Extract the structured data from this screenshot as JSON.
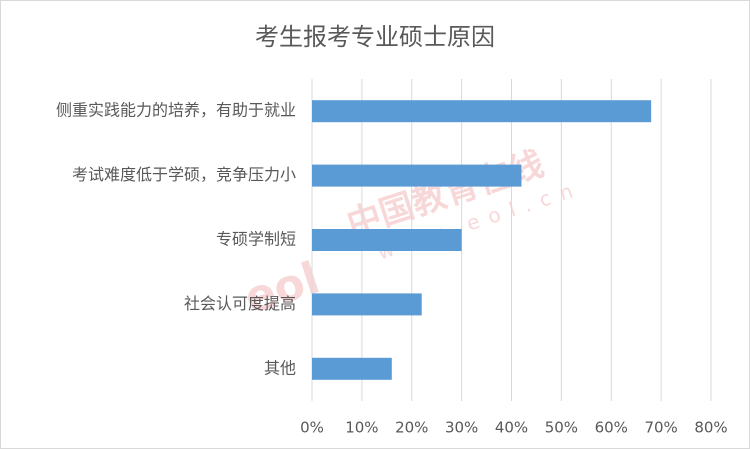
{
  "chart_data": {
    "type": "bar",
    "orientation": "horizontal",
    "title": "考生报考专业硕士原因",
    "categories": [
      "侧重实践能力的培养，有助于就业",
      "考试难度低于学硕，竞争压力小",
      "专硕学制短",
      "社会认可度提高",
      "其他"
    ],
    "values": [
      68,
      42,
      30,
      22,
      16
    ],
    "color": "#5b9bd5",
    "xlim": [
      0,
      80
    ],
    "xticks": [
      {
        "value": 0,
        "label": "0%"
      },
      {
        "value": 10,
        "label": "10%"
      },
      {
        "value": 20,
        "label": "20%"
      },
      {
        "value": 30,
        "label": "30%"
      },
      {
        "value": 40,
        "label": "40%"
      },
      {
        "value": 50,
        "label": "50%"
      },
      {
        "value": 60,
        "label": "60%"
      },
      {
        "value": 70,
        "label": "70%"
      },
      {
        "value": 80,
        "label": "80%"
      }
    ],
    "grid": true
  },
  "watermark": {
    "text": "中国教育在线",
    "url": "www.eol.cn",
    "logo": "eol"
  }
}
